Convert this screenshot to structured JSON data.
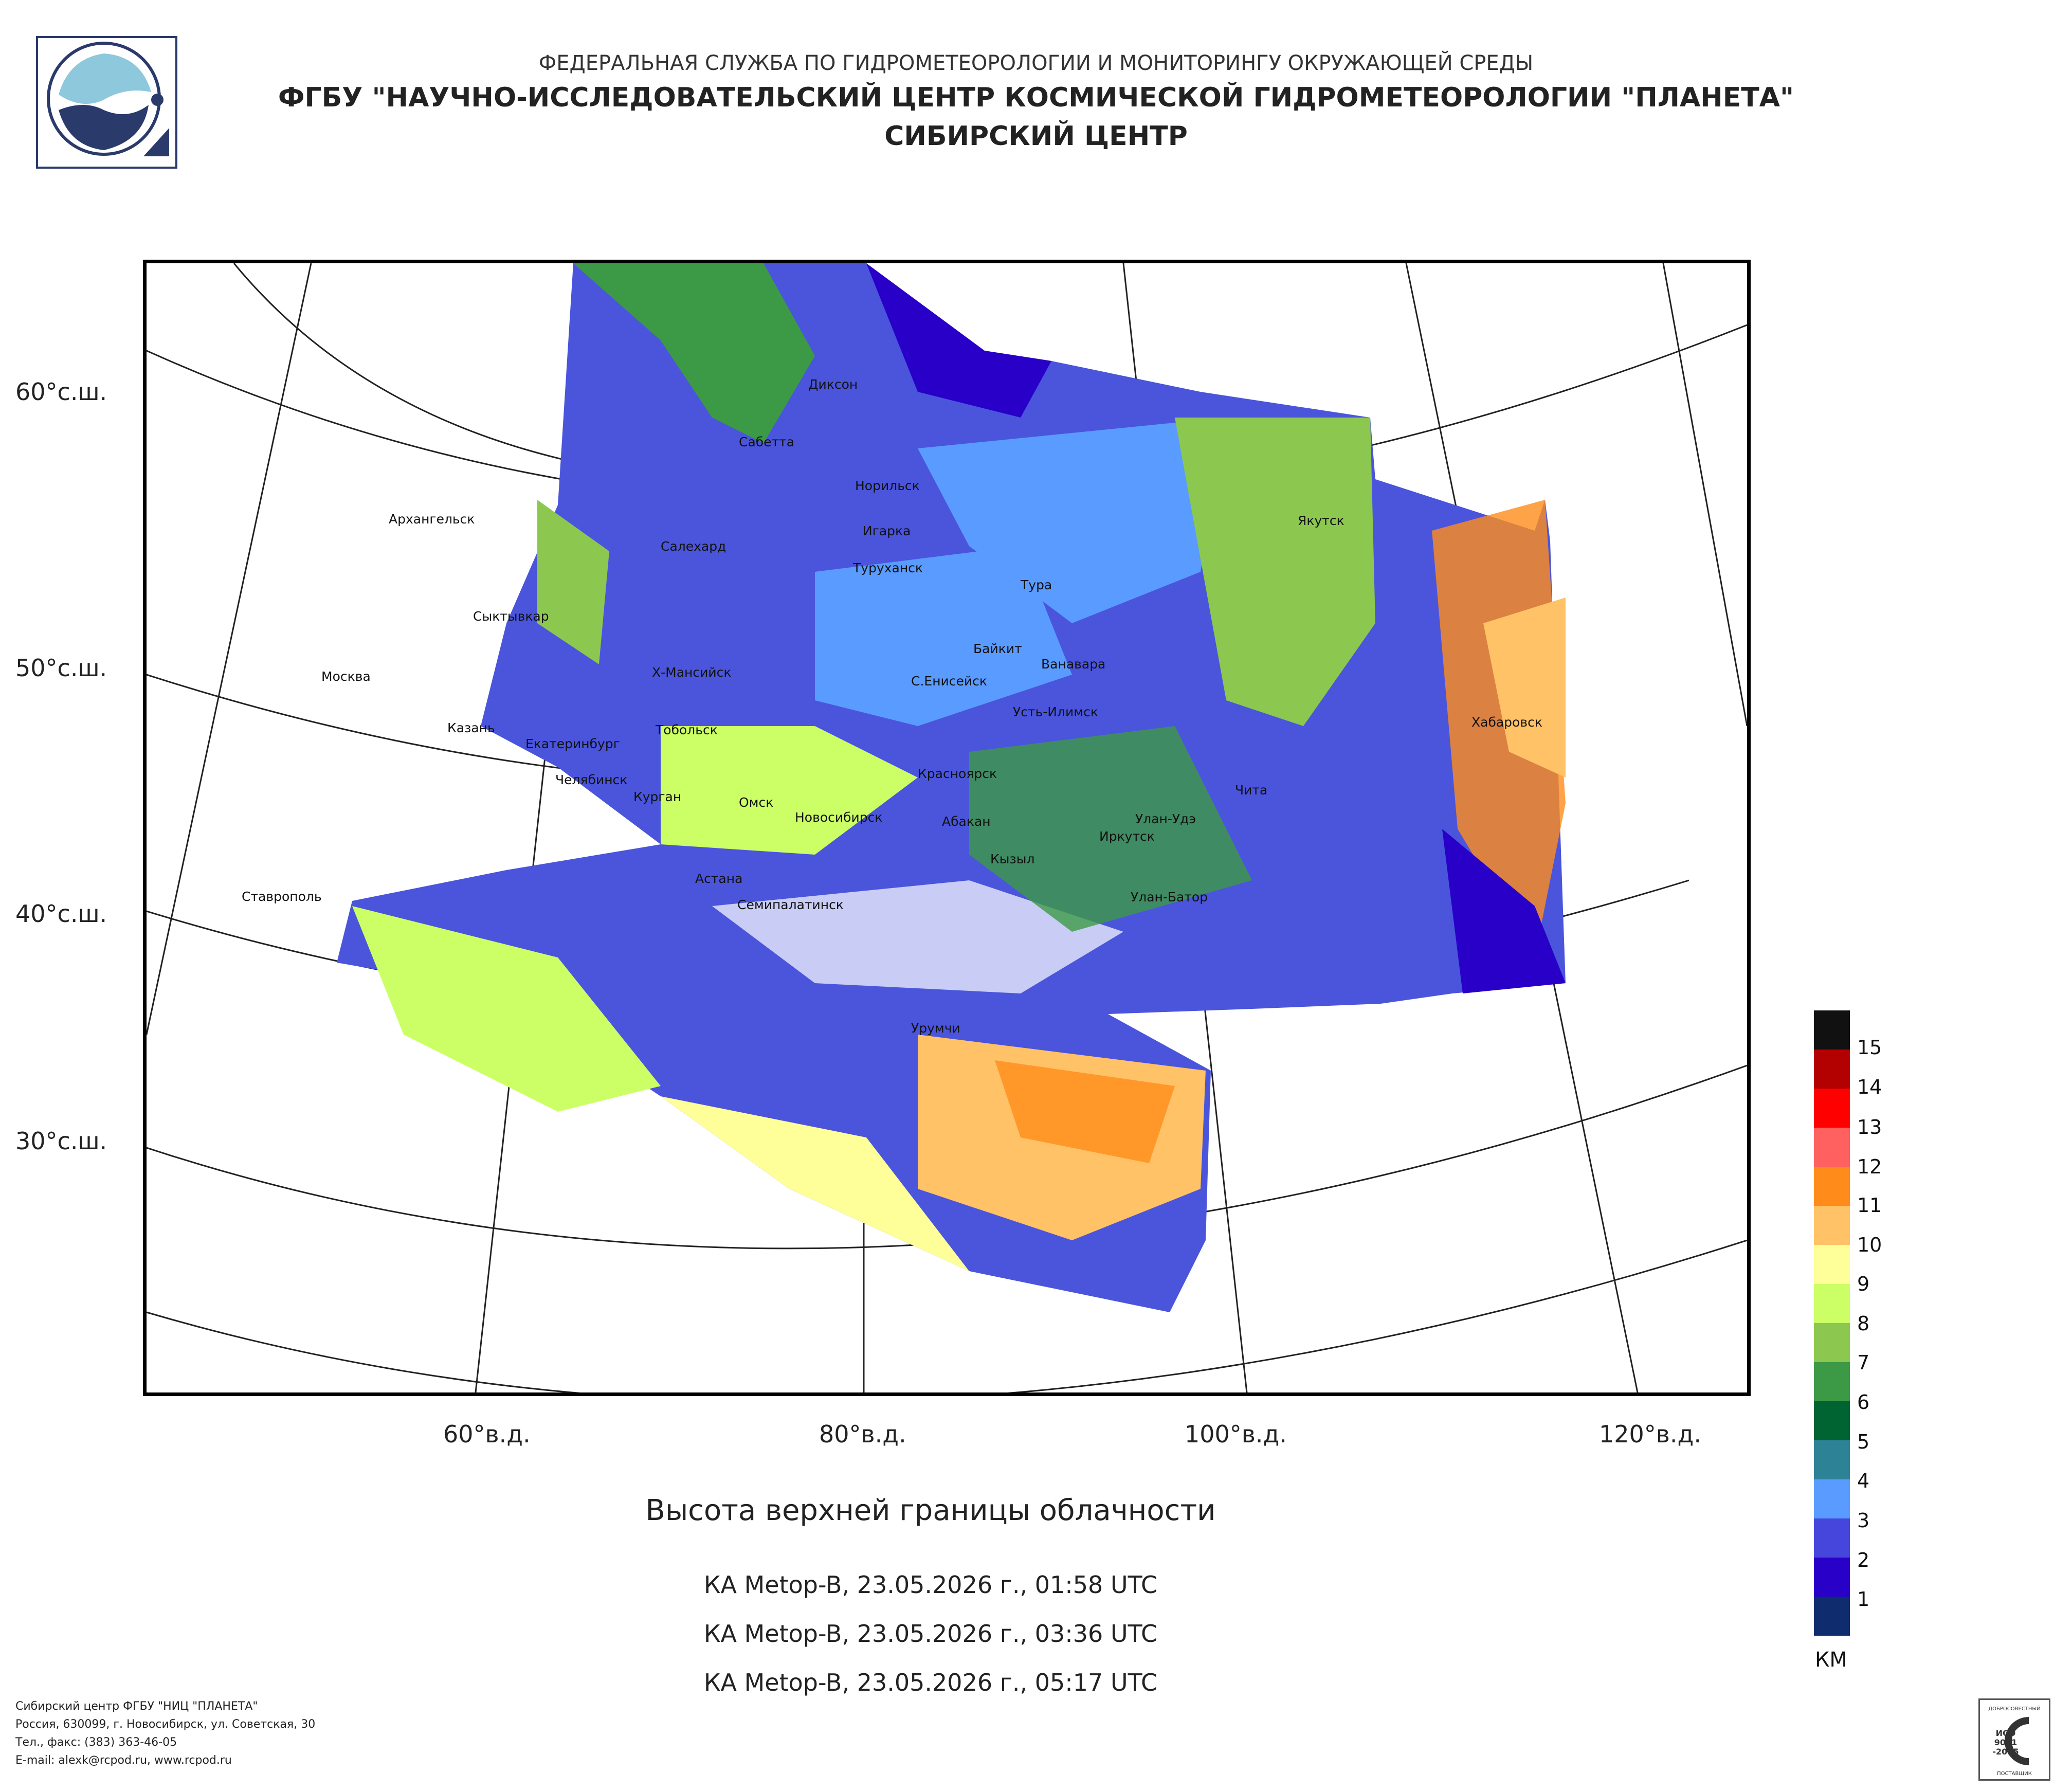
{
  "header": {
    "line1": "ФЕДЕРАЛЬНАЯ СЛУЖБА ПО ГИДРОМЕТЕОРОЛОГИИ И МОНИТОРИНГУ ОКРУЖАЮЩЕЙ СРЕДЫ",
    "line2": "ФГБУ \"НАУЧНО-ИССЛЕДОВАТЕЛЬСКИЙ ЦЕНТР КОСМИЧЕСКОЙ ГИДРОМЕТЕОРОЛОГИИ \"ПЛАНЕТА\"",
    "line3": "СИБИРСКИЙ ЦЕНТР"
  },
  "map": {
    "lat_labels": [
      "60°с.ш.",
      "50°с.ш.",
      "40°с.ш.",
      "30°с.ш."
    ],
    "lon_labels": [
      "60°в.д.",
      "80°в.д.",
      "100°в.д.",
      "120°в.д."
    ],
    "cities": [
      "Диксон",
      "Сабетта",
      "Норильск",
      "Архангельск",
      "Салехард",
      "Игарка",
      "Туруханск",
      "Тура",
      "Якутск",
      "Сыктывкар",
      "Байкит",
      "Ванавара",
      "Москва",
      "Х-Мансийск",
      "С.Енисейск",
      "Усть-Илимск",
      "Хабаровск",
      "Казань",
      "Екатеринбург",
      "Тобольск",
      "Челябинск",
      "Курган",
      "Омск",
      "Красноярск",
      "Чита",
      "Новосибирск",
      "Абакан",
      "Улан-Удэ",
      "Иркутск",
      "Кызыл",
      "Астана",
      "Ставрополь",
      "Семипалатинск",
      "Улан-Батор",
      "Урумчи"
    ]
  },
  "title": "Высота верхней границы облачности",
  "passes": [
    "КА Metop-B, 23.05.2026 г., 01:58 UTC",
    "КА Metop-B, 23.05.2026 г., 03:36 UTC",
    "КА Metop-B, 23.05.2026 г., 05:17 UTC"
  ],
  "legend": {
    "unit": "КМ",
    "labels": [
      "15",
      "14",
      "13",
      "12",
      "11",
      "10",
      "9",
      "8",
      "7",
      "6",
      "5",
      "4",
      "3",
      "2",
      "1"
    ],
    "colors": [
      "#111111",
      "#b30000",
      "#ff0000",
      "#ff6060",
      "#ff8c1a",
      "#ffc266",
      "#ffff99",
      "#ccff66",
      "#8cc850",
      "#3c9a46",
      "#006432",
      "#2e8296",
      "#5a9bff",
      "#4646dc",
      "#2800c8",
      "#0f2d6e"
    ]
  },
  "footer": {
    "line1": "Сибирский центр ФГБУ \"НИЦ \"ПЛАНЕТА\"",
    "line2": "Россия, 630099, г. Новосибирск, ул. Советская, 30",
    "line3": "Тел., факс: (383) 363-46-05",
    "line4": "E-mail: alexk@rcpod.ru, www.rcpod.ru"
  },
  "iso_badge": {
    "top": "ДОБРОСОВЕСТНЫЙ",
    "code": "ИСО",
    "num": "9001",
    "year": "-2015",
    "bottom": "ПОСТАВЩИК"
  }
}
